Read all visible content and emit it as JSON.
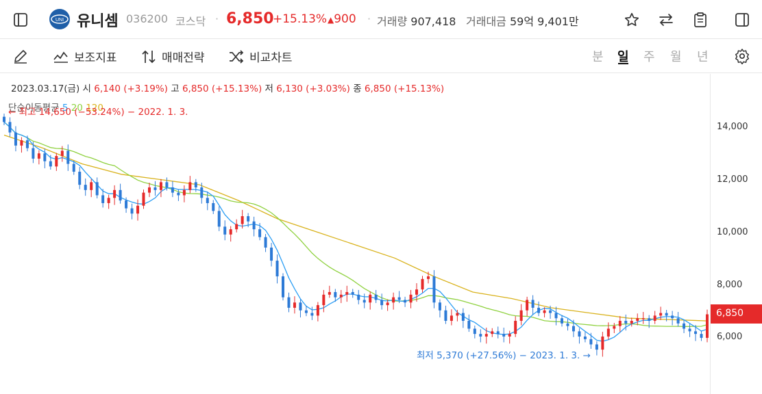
{
  "header": {
    "stock_name": "유니셈",
    "stock_code": "036200",
    "market": "코스닥",
    "price": "6,850",
    "change_rate": "+15.13%",
    "change_arrow": "▲",
    "change_value": "900",
    "volume_label": "거래량",
    "volume_value": "907,418",
    "amount_label": "거래대금",
    "amount_value": "59억 9,401만",
    "separator": "·",
    "icons": [
      "sidebar-icon",
      "star-icon",
      "swap-icon",
      "clipboard-icon",
      "panel-icon"
    ]
  },
  "toolbar": {
    "indicator_label": "보조지표",
    "strategy_label": "매매전략",
    "compare_label": "비교차트",
    "periods": [
      "분",
      "일",
      "주",
      "월",
      "년"
    ],
    "active_period": "일"
  },
  "info": {
    "date": "2023.03.17(금)",
    "open_label": "시",
    "open_value": "6,140 (+3.19%)",
    "high_label": "고",
    "high_value": "6,850 (+15.13%)",
    "low_label": "저",
    "low_value": "6,130 (+3.03%)",
    "close_label": "종",
    "close_value": "6,850 (+15.13%)",
    "ma_label": "단순이동평균",
    "ma_periods": [
      "5",
      "20",
      "120"
    ],
    "high_annotation": "← 최고 14,650 (−53.24%) − 2022. 1. 3.",
    "low_annotation": "최저 5,370 (+27.56%) − 2023. 1. 3. →",
    "current_price_tag": "6,850"
  },
  "colors": {
    "up": "#e52a2a",
    "down": "#2d7ad6",
    "ma5": "#2a9df4",
    "ma20": "#8fd13f",
    "ma120": "#d9b21c"
  },
  "chart_data": {
    "type": "candlestick",
    "y_ticks": [
      "14,000",
      "12,000",
      "10,000",
      "8,000",
      "6,000"
    ],
    "ylim": [
      4800,
      15000
    ],
    "close_series": [
      14200,
      13800,
      13300,
      13500,
      13200,
      12800,
      13000,
      12700,
      12500,
      12900,
      13100,
      12600,
      12300,
      11800,
      11600,
      11900,
      11400,
      11100,
      11300,
      11600,
      11200,
      10900,
      10700,
      11000,
      11500,
      11700,
      11600,
      11900,
      11700,
      11500,
      11400,
      11600,
      11900,
      11700,
      11300,
      11100,
      10800,
      10200,
      9900,
      10100,
      10300,
      10600,
      10400,
      10100,
      9800,
      9400,
      8900,
      8300,
      7500,
      7100,
      7300,
      7000,
      6900,
      6800,
      7200,
      7600,
      7700,
      7500,
      7600,
      7700,
      7600,
      7400,
      7300,
      7600,
      7400,
      7200,
      7300,
      7500,
      7400,
      7300,
      7600,
      7800,
      8200,
      8300,
      7300,
      7000,
      6600,
      6800,
      6900,
      6600,
      6300,
      6100,
      6000,
      6100,
      6200,
      6100,
      6000,
      6100,
      6600,
      7000,
      7400,
      7100,
      6900,
      7000,
      6900,
      6700,
      6500,
      6400,
      6200,
      6000,
      5900,
      5700,
      5500,
      6000,
      6300,
      6400,
      6600,
      6500,
      6600,
      6700,
      6700,
      6600,
      6800,
      6900,
      6800,
      6700,
      6500,
      6300,
      6200,
      6100,
      5950,
      6850
    ],
    "ma120_series": [
      13700,
      13200,
      12600,
      12200,
      12000,
      11800,
      11200,
      10500,
      10000,
      9500,
      9000,
      8300,
      7700,
      7450,
      7100,
      6900,
      6700,
      6650,
      6600
    ]
  }
}
